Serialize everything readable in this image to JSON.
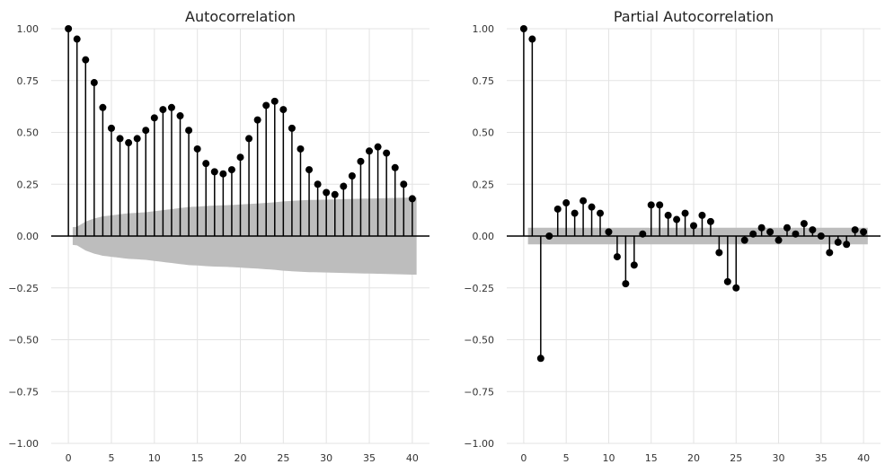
{
  "chart_data": [
    {
      "type": "stem",
      "title": "Autocorrelation",
      "xlabel": "",
      "ylabel": "",
      "xlim": [
        -2,
        42
      ],
      "ylim": [
        -1.0,
        1.0
      ],
      "xticks": [
        0,
        5,
        10,
        15,
        20,
        25,
        30,
        35,
        40
      ],
      "yticks": [
        -1.0,
        -0.75,
        -0.5,
        -0.25,
        0.0,
        0.25,
        0.5,
        0.75,
        1.0
      ],
      "ytick_labels": [
        "−1.00",
        "−0.75",
        "−0.50",
        "−0.25",
        "0.00",
        "0.25",
        "0.50",
        "0.75",
        "1.00"
      ],
      "grid": true,
      "confidence_band": {
        "x_start": 0.5,
        "x_end": 40.5,
        "lags": [
          0,
          1,
          2,
          3,
          4,
          5,
          6,
          7,
          8,
          9,
          10,
          11,
          12,
          13,
          14,
          15,
          16,
          17,
          18,
          19,
          20,
          21,
          22,
          23,
          24,
          25,
          26,
          27,
          28,
          29,
          30,
          31,
          32,
          33,
          34,
          35,
          36,
          37,
          38,
          39,
          40
        ],
        "half_width": [
          0.04,
          0.045,
          0.07,
          0.085,
          0.095,
          0.1,
          0.105,
          0.11,
          0.112,
          0.115,
          0.12,
          0.125,
          0.13,
          0.135,
          0.14,
          0.142,
          0.145,
          0.147,
          0.148,
          0.15,
          0.152,
          0.155,
          0.157,
          0.16,
          0.163,
          0.167,
          0.17,
          0.172,
          0.174,
          0.175,
          0.176,
          0.177,
          0.178,
          0.179,
          0.18,
          0.181,
          0.182,
          0.183,
          0.184,
          0.185,
          0.186
        ]
      },
      "x": [
        0,
        1,
        2,
        3,
        4,
        5,
        6,
        7,
        8,
        9,
        10,
        11,
        12,
        13,
        14,
        15,
        16,
        17,
        18,
        19,
        20,
        21,
        22,
        23,
        24,
        25,
        26,
        27,
        28,
        29,
        30,
        31,
        32,
        33,
        34,
        35,
        36,
        37,
        38,
        39,
        40
      ],
      "values": [
        1.0,
        0.95,
        0.85,
        0.74,
        0.62,
        0.52,
        0.47,
        0.45,
        0.47,
        0.51,
        0.57,
        0.61,
        0.62,
        0.58,
        0.51,
        0.42,
        0.35,
        0.31,
        0.3,
        0.32,
        0.38,
        0.47,
        0.56,
        0.63,
        0.65,
        0.61,
        0.52,
        0.42,
        0.32,
        0.25,
        0.21,
        0.2,
        0.24,
        0.29,
        0.36,
        0.41,
        0.43,
        0.4,
        0.33,
        0.25,
        0.18
      ]
    },
    {
      "type": "stem",
      "title": "Partial Autocorrelation",
      "xlabel": "",
      "ylabel": "",
      "xlim": [
        -2,
        42
      ],
      "ylim": [
        -1.0,
        1.0
      ],
      "xticks": [
        0,
        5,
        10,
        15,
        20,
        25,
        30,
        35,
        40
      ],
      "yticks": [
        -1.0,
        -0.75,
        -0.5,
        -0.25,
        0.0,
        0.25,
        0.5,
        0.75,
        1.0
      ],
      "ytick_labels": [
        "−1.00",
        "−0.75",
        "−0.50",
        "−0.25",
        "0.00",
        "0.25",
        "0.50",
        "0.75",
        "1.00"
      ],
      "grid": true,
      "confidence_band": {
        "x_start": 0.5,
        "x_end": 40.5,
        "lags": [
          0,
          40
        ],
        "half_width": [
          0.04,
          0.04
        ]
      },
      "x": [
        0,
        1,
        2,
        3,
        4,
        5,
        6,
        7,
        8,
        9,
        10,
        11,
        12,
        13,
        14,
        15,
        16,
        17,
        18,
        19,
        20,
        21,
        22,
        23,
        24,
        25,
        26,
        27,
        28,
        29,
        30,
        31,
        32,
        33,
        34,
        35,
        36,
        37,
        38,
        39,
        40
      ],
      "values": [
        1.0,
        0.95,
        -0.59,
        0.0,
        0.13,
        0.16,
        0.11,
        0.17,
        0.14,
        0.11,
        0.02,
        -0.1,
        -0.23,
        -0.14,
        0.01,
        0.15,
        0.15,
        0.1,
        0.08,
        0.11,
        0.05,
        0.1,
        0.07,
        -0.08,
        -0.22,
        -0.25,
        -0.02,
        0.01,
        0.04,
        0.02,
        -0.02,
        0.04,
        0.01,
        0.06,
        0.03,
        0.0,
        -0.08,
        -0.03,
        -0.04,
        0.03,
        0.02
      ]
    }
  ]
}
